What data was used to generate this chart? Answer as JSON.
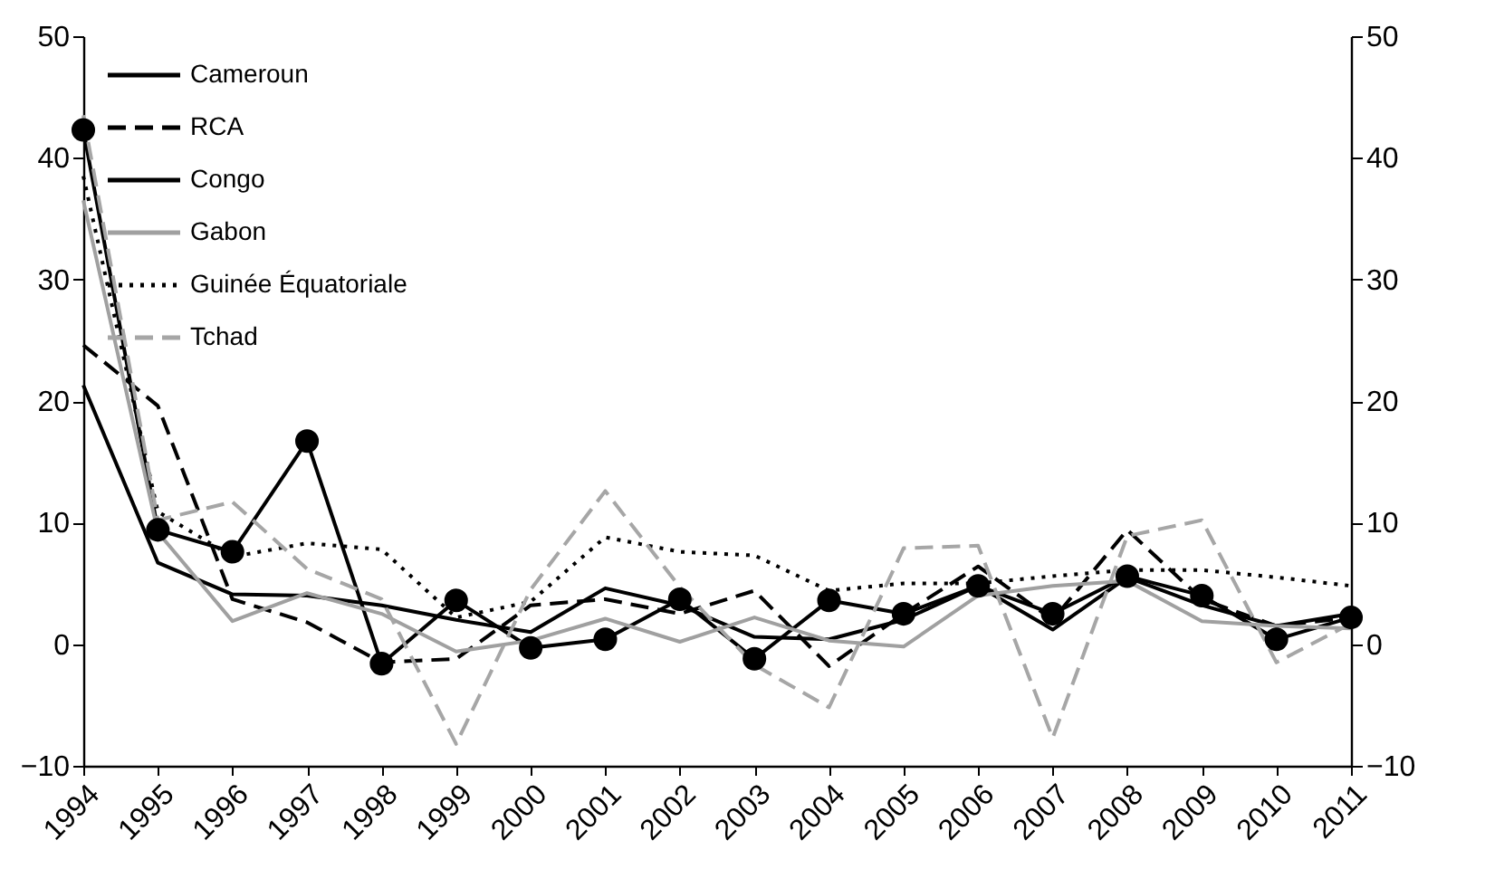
{
  "chart_data": {
    "type": "line",
    "categories": [
      "1994",
      "1995",
      "1996",
      "1997",
      "1998",
      "1999",
      "2000",
      "2001",
      "2002",
      "2003",
      "2004",
      "2005",
      "2006",
      "2007",
      "2008",
      "2009",
      "2010",
      "2011"
    ],
    "series": [
      {
        "name": "Cameroun",
        "color": "#000000",
        "line_style": "solid",
        "marker": "none",
        "values": [
          21.3,
          6.7,
          4.1,
          4.0,
          3.2,
          2.0,
          1.0,
          4.6,
          3.2,
          0.6,
          0.4,
          2.0,
          4.8,
          1.2,
          5.5,
          3.2,
          1.5,
          2.5
        ]
      },
      {
        "name": "RCA",
        "color": "#000000",
        "line_style": "dashed",
        "marker": "none",
        "values": [
          24.6,
          19.6,
          3.7,
          1.8,
          -1.5,
          -1.2,
          3.2,
          3.7,
          2.5,
          4.4,
          -1.8,
          2.5,
          6.4,
          2.0,
          9.4,
          3.7,
          1.5,
          2.2
        ]
      },
      {
        "name": "Congo",
        "color": "#000000",
        "line_style": "solid",
        "marker": "circle",
        "values": [
          42.3,
          9.4,
          7.6,
          16.7,
          -1.6,
          3.6,
          -0.3,
          0.4,
          3.7,
          -1.2,
          3.6,
          2.5,
          4.8,
          2.5,
          5.6,
          4.0,
          0.4,
          2.2
        ]
      },
      {
        "name": "Gabon",
        "color": "#a0a0a0",
        "line_style": "solid",
        "marker": "none",
        "values": [
          36.5,
          9.2,
          1.9,
          4.2,
          2.5,
          -0.6,
          0.3,
          2.1,
          0.2,
          2.2,
          0.3,
          -0.2,
          4.0,
          4.8,
          5.2,
          1.9,
          1.5,
          1.3
        ]
      },
      {
        "name": "Guinée Équatoriale",
        "color": "#000000",
        "line_style": "dotted",
        "marker": "none",
        "values": [
          38.5,
          10.9,
          7.2,
          8.3,
          7.8,
          2.2,
          3.5,
          8.8,
          7.6,
          7.3,
          4.4,
          5.0,
          5.0,
          5.6,
          6.1,
          6.1,
          5.5,
          4.8
        ]
      },
      {
        "name": "Tchad",
        "color": "#a6a6a6",
        "line_style": "dashed",
        "marker": "none",
        "values": [
          43.5,
          10.2,
          11.7,
          6.2,
          3.7,
          -8.2,
          4.5,
          12.6,
          4.7,
          -1.7,
          -5.2,
          7.9,
          8.1,
          -7.7,
          8.9,
          10.2,
          -1.5,
          1.7
        ]
      }
    ],
    "ylim": [
      -10,
      50
    ],
    "yticks": [
      -10,
      0,
      10,
      20,
      30,
      40,
      50
    ],
    "y2lim": [
      -10,
      50
    ],
    "y2ticks": [
      -10,
      0,
      10,
      20,
      30,
      40,
      50
    ],
    "grid": false,
    "legend": "top left"
  }
}
